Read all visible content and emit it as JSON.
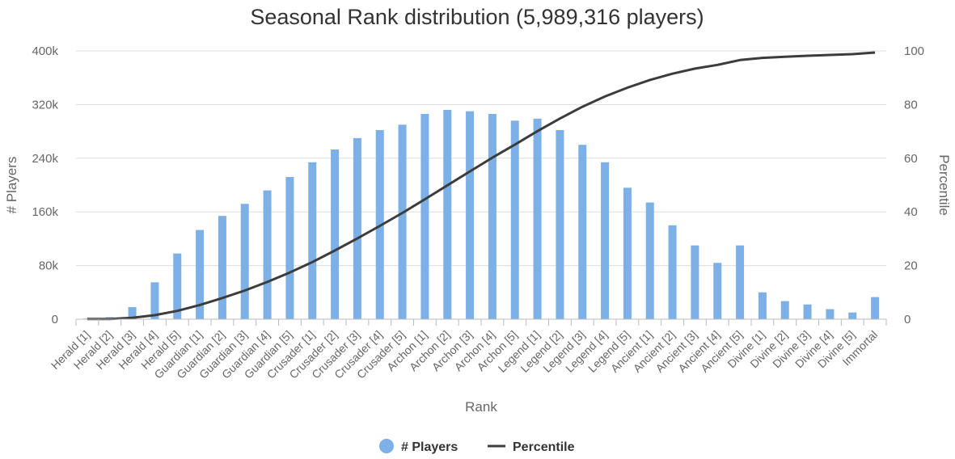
{
  "chart_data": {
    "type": "bar",
    "title": "Seasonal Rank distribution (5,989,316 players)",
    "xlabel": "Rank",
    "ylabel": "# Players",
    "y2label": "Percentile",
    "categories": [
      "Herald [1]",
      "Herald [2]",
      "Herald [3]",
      "Herald [4]",
      "Herald [5]",
      "Guardian [1]",
      "Guardian [2]",
      "Guardian [3]",
      "Guardian [4]",
      "Guardian [5]",
      "Crusader [1]",
      "Crusader [2]",
      "Crusader [3]",
      "Crusader [4]",
      "Crusader [5]",
      "Archon [1]",
      "Archon [2]",
      "Archon [3]",
      "Archon [4]",
      "Archon [5]",
      "Legend [1]",
      "Legend [2]",
      "Legend [3]",
      "Legend [4]",
      "Legend [5]",
      "Ancient [1]",
      "Ancient [2]",
      "Ancient [3]",
      "Ancient [4]",
      "Ancient [5]",
      "Divine [1]",
      "Divine [2]",
      "Divine [3]",
      "Divine [4]",
      "Divine [5]",
      "Immortal"
    ],
    "series": [
      {
        "name": "# Players",
        "type": "bar",
        "axis": "left",
        "color": "#7cb0e6",
        "values": [
          1000,
          3000,
          18000,
          55000,
          98000,
          133000,
          154000,
          172000,
          192000,
          212000,
          234000,
          253000,
          270000,
          282000,
          290000,
          306000,
          312000,
          310000,
          306000,
          296000,
          299000,
          282000,
          260000,
          234000,
          196000,
          174000,
          140000,
          110000,
          84000,
          110000,
          40000,
          27000,
          22000,
          15000,
          10000,
          33000
        ]
      },
      {
        "name": "Percentile",
        "type": "line",
        "axis": "right",
        "color": "#3c3c3c",
        "values": [
          0.1,
          0.1,
          0.5,
          1.5,
          3.1,
          5.3,
          7.9,
          10.7,
          13.9,
          17.4,
          21.3,
          25.6,
          30.1,
          34.8,
          39.6,
          44.7,
          49.9,
          55.1,
          60.2,
          65.1,
          70.1,
          74.8,
          79.2,
          83.0,
          86.3,
          89.2,
          91.5,
          93.4,
          94.8,
          96.6,
          97.4,
          97.8,
          98.2,
          98.5,
          98.8,
          99.4
        ]
      }
    ],
    "ylim": [
      0,
      400000
    ],
    "y2lim": [
      0,
      100
    ],
    "yticks": [
      "0",
      "80k",
      "160k",
      "240k",
      "320k",
      "400k"
    ],
    "y2ticks": [
      "0",
      "20",
      "40",
      "60",
      "80",
      "100"
    ],
    "grid": true,
    "legend_position": "bottom-center"
  }
}
